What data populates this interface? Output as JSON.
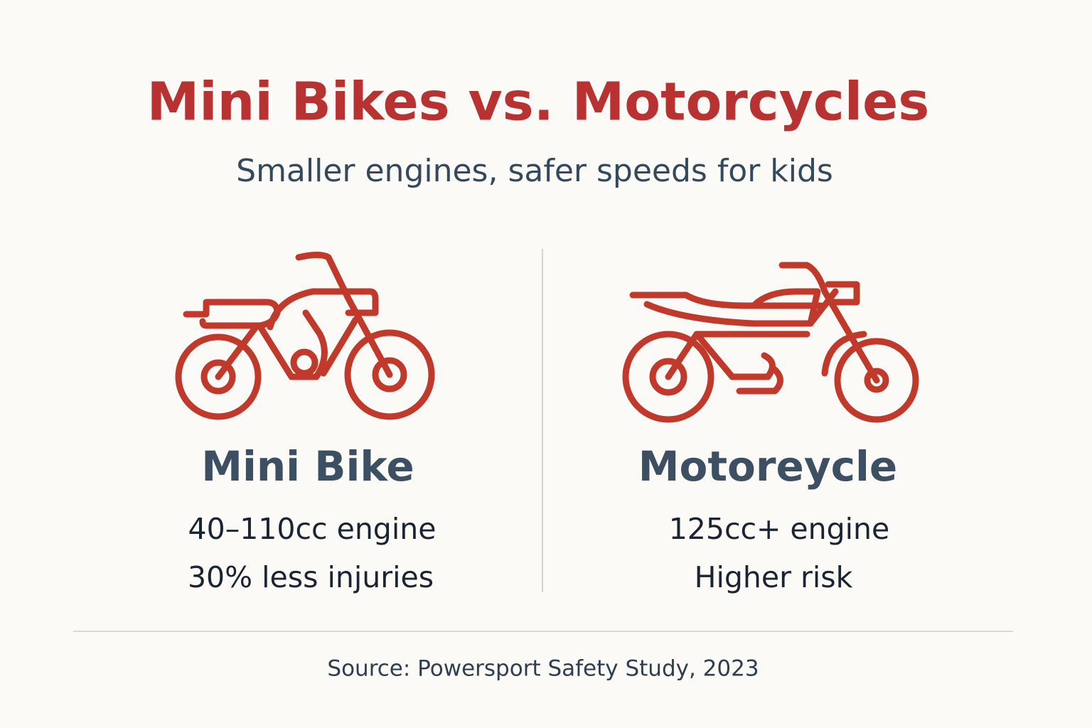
{
  "title": "Mini Bikes vs. Motorcycles",
  "subtitle": "Smaller engines, safer speeds for kids",
  "columns": [
    {
      "name": "Mini Bike",
      "lines": [
        "40–110cc engine",
        "30% less injuries"
      ]
    },
    {
      "name": "Motoreycle",
      "lines": [
        "125cc+ engine",
        "Higher risk"
      ]
    }
  ],
  "source": "Source: Powersport Safety Study, 2023"
}
